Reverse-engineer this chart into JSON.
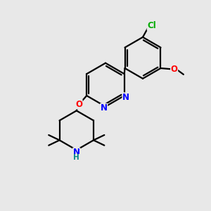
{
  "background_color": "#e8e8e8",
  "bond_color": "#000000",
  "atom_colors": {
    "N": "#0000ff",
    "O": "#ff0000",
    "Cl": "#00aa00",
    "H": "#008888",
    "C": "#000000"
  },
  "figsize": [
    3.0,
    3.0
  ],
  "dpi": 100
}
